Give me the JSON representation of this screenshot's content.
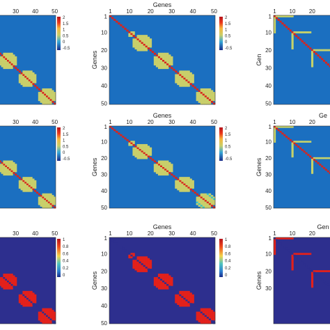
{
  "figure": {
    "axis_label": "Genes",
    "row_major_ticks": [
      "1",
      "10",
      "20",
      "30",
      "40",
      "50"
    ],
    "col_major_ticks": [
      "1",
      "10",
      "20",
      "30",
      "40",
      "50"
    ],
    "colorbar_ticks_a": [
      "2",
      "1.5",
      "1",
      "0.5",
      "0",
      "-0.5"
    ],
    "colorbar_ticks_b": [
      "1",
      "0.8",
      "0.6",
      "0.4",
      "0.2",
      "0"
    ]
  },
  "chart_data": [
    {
      "type": "heatmap",
      "panel": "row1-col1",
      "pattern": "diag-blocks",
      "top_xlabel": "enes",
      "xticks": [
        "30",
        "40",
        "50"
      ],
      "yticks": [],
      "colorbar": "a",
      "clim": [
        -0.5,
        2
      ],
      "colormap": "jet",
      "diag_value": 2,
      "block_value": 1
    },
    {
      "type": "heatmap",
      "panel": "row1-col2",
      "pattern": "diag-blocks",
      "top_xlabel": "Genes",
      "ylabel": "Genes",
      "xticks": [
        "1",
        "10",
        "20",
        "30",
        "40",
        "50"
      ],
      "yticks": [
        "1",
        "10",
        "20",
        "30",
        "40",
        "50"
      ],
      "colorbar": "a",
      "clim": [
        -0.5,
        2
      ],
      "colormap": "jet",
      "diag_value": 2,
      "block_value": 1
    },
    {
      "type": "heatmap",
      "panel": "row1-col3",
      "pattern": "star-hubs",
      "ylabel": "Gen",
      "xticks": [
        "1",
        "10",
        "20"
      ],
      "yticks": [
        "1",
        "10",
        "20",
        "30",
        "40",
        "50"
      ],
      "colormap": "jet"
    },
    {
      "type": "heatmap",
      "panel": "row2-col1",
      "pattern": "diag-blocks",
      "top_xlabel": "enes",
      "xticks": [
        "30",
        "40",
        "50"
      ],
      "yticks": [],
      "colorbar": "a",
      "clim": [
        -0.5,
        2
      ],
      "colormap": "jet"
    },
    {
      "type": "heatmap",
      "panel": "row2-col2",
      "pattern": "diag-blocks-noisy",
      "top_xlabel": "Genes",
      "ylabel": "Genes",
      "xticks": [
        "1",
        "10",
        "20",
        "30",
        "40",
        "50"
      ],
      "yticks": [
        "1",
        "10",
        "20",
        "30",
        "40",
        "50"
      ],
      "colorbar": "a",
      "clim": [
        -0.5,
        2
      ],
      "colormap": "jet"
    },
    {
      "type": "heatmap",
      "panel": "row2-col3",
      "pattern": "star-hubs",
      "top_xlabel": "Ge",
      "ylabel": "Genes",
      "xticks": [
        "1",
        "10",
        "20"
      ],
      "yticks": [
        "1",
        "10",
        "20",
        "30",
        "40",
        "50"
      ],
      "colormap": "jet"
    },
    {
      "type": "heatmap",
      "panel": "row3-col1",
      "pattern": "binary-blocks",
      "xticks": [
        "30",
        "40",
        "50"
      ],
      "yticks": [],
      "colorbar": "b",
      "clim": [
        0,
        1
      ],
      "colormap": "jet"
    },
    {
      "type": "heatmap",
      "panel": "row3-col2",
      "pattern": "binary-blocks",
      "top_xlabel": "Genes",
      "ylabel": "Genes",
      "xticks": [
        "1",
        "10",
        "20",
        "30",
        "40",
        "50"
      ],
      "yticks": [
        "1",
        "10",
        "20",
        "30",
        "40",
        "50"
      ],
      "colorbar": "b",
      "clim": [
        0,
        1
      ],
      "colormap": "jet"
    },
    {
      "type": "heatmap",
      "panel": "row3-col3",
      "pattern": "binary-star",
      "top_xlabel": "Gen",
      "ylabel": "Genes",
      "xticks": [
        "1",
        "10",
        "20"
      ],
      "yticks": [
        "1",
        "10",
        "20",
        "30"
      ],
      "colormap": "jet"
    }
  ]
}
